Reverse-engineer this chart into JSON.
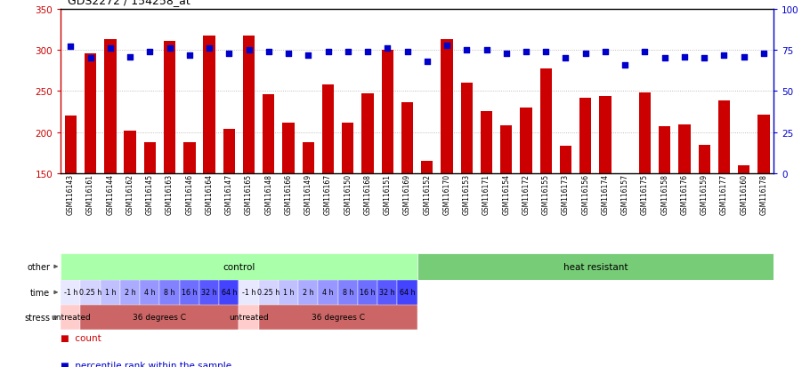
{
  "title": "GDS2272 / 154258_at",
  "ylim_left": [
    150,
    350
  ],
  "ylim_right": [
    0,
    100
  ],
  "yticks_left": [
    150,
    200,
    250,
    300,
    350
  ],
  "yticks_right": [
    0,
    25,
    50,
    75,
    100
  ],
  "bar_color": "#cc0000",
  "dot_color": "#0000cc",
  "sample_ids": [
    "GSM116143",
    "GSM116161",
    "GSM116144",
    "GSM116162",
    "GSM116145",
    "GSM116163",
    "GSM116146",
    "GSM116164",
    "GSM116147",
    "GSM116165",
    "GSM116148",
    "GSM116166",
    "GSM116149",
    "GSM116167",
    "GSM116150",
    "GSM116168",
    "GSM116151",
    "GSM116169",
    "GSM116152",
    "GSM116170",
    "GSM116153",
    "GSM116171",
    "GSM116154",
    "GSM116172",
    "GSM116155",
    "GSM116173",
    "GSM116156",
    "GSM116174",
    "GSM116157",
    "GSM116175",
    "GSM116158",
    "GSM116176",
    "GSM116159",
    "GSM116177",
    "GSM116160",
    "GSM116178"
  ],
  "bar_values": [
    220,
    296,
    313,
    202,
    188,
    311,
    188,
    317,
    204,
    317,
    246,
    211,
    188,
    258,
    211,
    247,
    300,
    236,
    165,
    313,
    260,
    225,
    208,
    230,
    277,
    183,
    242,
    244,
    150,
    248,
    207,
    209,
    184,
    238,
    160,
    221
  ],
  "dot_values": [
    77,
    70,
    76,
    71,
    74,
    76,
    72,
    76,
    73,
    75,
    74,
    73,
    72,
    74,
    74,
    74,
    76,
    74,
    68,
    78,
    75,
    75,
    73,
    74,
    74,
    70,
    73,
    74,
    66,
    74,
    70,
    71,
    70,
    72,
    71,
    73
  ],
  "other_groups": [
    {
      "label": "control",
      "start": 0,
      "end": 18,
      "color": "#aaffaa"
    },
    {
      "label": "heat resistant",
      "start": 18,
      "end": 36,
      "color": "#77cc77"
    }
  ],
  "time_groups": [
    {
      "label": "-1 h",
      "start": 0,
      "end": 1
    },
    {
      "label": "0.25 h",
      "start": 1,
      "end": 2
    },
    {
      "label": "1 h",
      "start": 2,
      "end": 3
    },
    {
      "label": "2 h",
      "start": 3,
      "end": 4
    },
    {
      "label": "4 h",
      "start": 4,
      "end": 5
    },
    {
      "label": "8 h",
      "start": 5,
      "end": 6
    },
    {
      "label": "16 h",
      "start": 6,
      "end": 7
    },
    {
      "label": "32 h",
      "start": 7,
      "end": 8
    },
    {
      "label": "64 h",
      "start": 8,
      "end": 9
    },
    {
      "label": "-1 h",
      "start": 9,
      "end": 10
    },
    {
      "label": "0.25 h",
      "start": 10,
      "end": 11
    },
    {
      "label": "1 h",
      "start": 11,
      "end": 12
    },
    {
      "label": "2 h",
      "start": 12,
      "end": 13
    },
    {
      "label": "4 h",
      "start": 13,
      "end": 14
    },
    {
      "label": "8 h",
      "start": 14,
      "end": 15
    },
    {
      "label": "16 h",
      "start": 15,
      "end": 16
    },
    {
      "label": "32 h",
      "start": 16,
      "end": 17
    },
    {
      "label": "64 h",
      "start": 17,
      "end": 18
    }
  ],
  "stress_groups": [
    {
      "label": "untreated",
      "start": 0,
      "end": 1,
      "color": "#ffcccc"
    },
    {
      "label": "36 degrees C",
      "start": 1,
      "end": 9,
      "color": "#cc6666"
    },
    {
      "label": "untreated",
      "start": 9,
      "end": 10,
      "color": "#ffcccc"
    },
    {
      "label": "36 degrees C",
      "start": 10,
      "end": 18,
      "color": "#cc6666"
    }
  ],
  "background_color": "#ffffff",
  "grid_color": "#aaaaaa",
  "axis_left_color": "#cc0000",
  "axis_right_color": "#0000cc",
  "time_colors": [
    "#e8e8ff",
    "#d4d4ff",
    "#c0c0ff",
    "#ababff",
    "#9797ff",
    "#8282ff",
    "#6e6eff",
    "#5959ff",
    "#4444ff",
    "#e8e8ff",
    "#d4d4ff",
    "#c0c0ff",
    "#ababff",
    "#9797ff",
    "#8282ff",
    "#6e6eff",
    "#5959ff",
    "#4444ff"
  ]
}
